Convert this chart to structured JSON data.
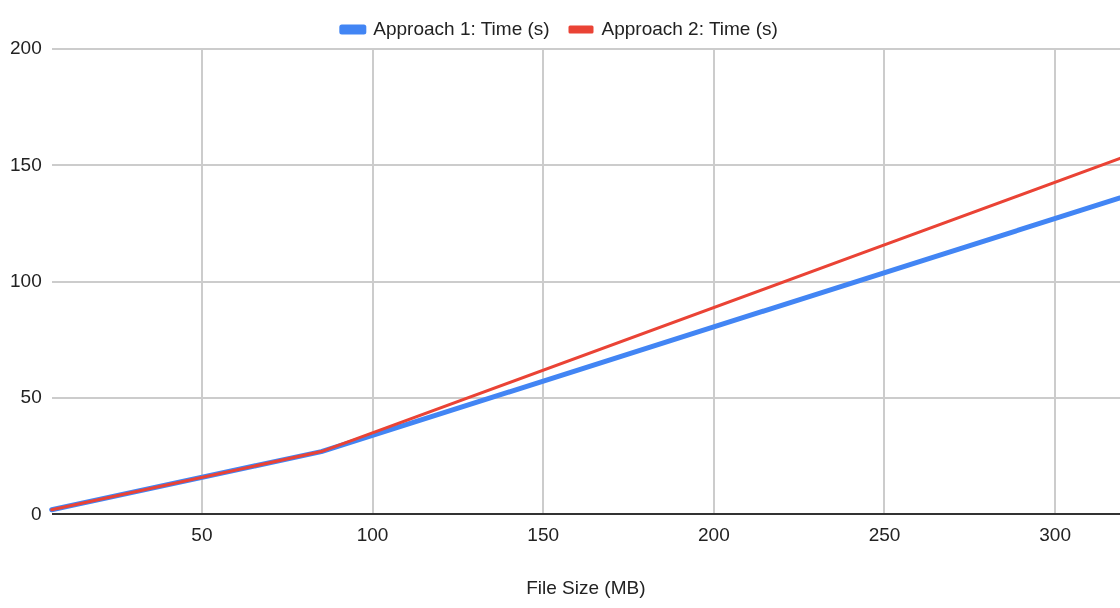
{
  "chart_data": {
    "type": "line",
    "xlabel": "File Size (MB)",
    "x": [
      6,
      85,
      319
    ],
    "series": [
      {
        "name": "Approach 1: Time (s)",
        "color": "#4285f4",
        "values": [
          2,
          27,
          136
        ]
      },
      {
        "name": "Approach 2: Time (s)",
        "color": "#ea4335",
        "values": [
          2,
          27,
          153
        ]
      }
    ],
    "xlim": [
      6,
      319
    ],
    "xticks": [
      50,
      100,
      150,
      200,
      250,
      300
    ],
    "ylim": [
      0,
      200
    ],
    "yticks": [
      0,
      50,
      100,
      150,
      200
    ],
    "grid": true,
    "legend": "top",
    "marker": "none",
    "line_style": "solid"
  }
}
